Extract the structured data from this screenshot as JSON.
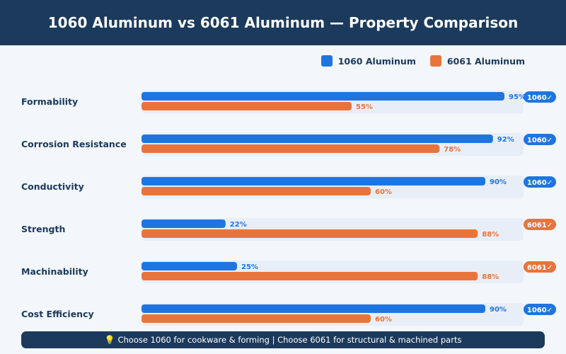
{
  "header": {
    "title": "1060 Aluminum vs 6061 Aluminum — Property Comparison"
  },
  "colors": {
    "header_bg": "#1b3a5c",
    "series_1060": "#1f75e0",
    "series_6061": "#e8743b",
    "track": "#e8eef7"
  },
  "chart_data": {
    "type": "bar",
    "orientation": "horizontal",
    "categories": [
      "Formability",
      "Corrosion Resistance",
      "Conductivity",
      "Strength",
      "Machinability",
      "Cost Efficiency"
    ],
    "series": [
      {
        "name": "1060 Aluminum",
        "values": [
          95,
          92,
          90,
          22,
          25,
          90
        ]
      },
      {
        "name": "6061 Aluminum",
        "values": [
          55,
          78,
          60,
          88,
          88,
          60
        ]
      }
    ],
    "value_suffix": "%",
    "xlim": [
      0,
      100
    ],
    "legend_position": "top-right",
    "winners": [
      "1060✓",
      "1060✓",
      "1060✓",
      "6061✓",
      "6061✓",
      "1060✓"
    ],
    "title": "1060 Aluminum vs 6061 Aluminum — Property Comparison"
  },
  "footer": {
    "icon": "lightbulb-icon",
    "text": "Choose 1060 for cookware & forming | Choose 6061 for structural & machined parts"
  }
}
